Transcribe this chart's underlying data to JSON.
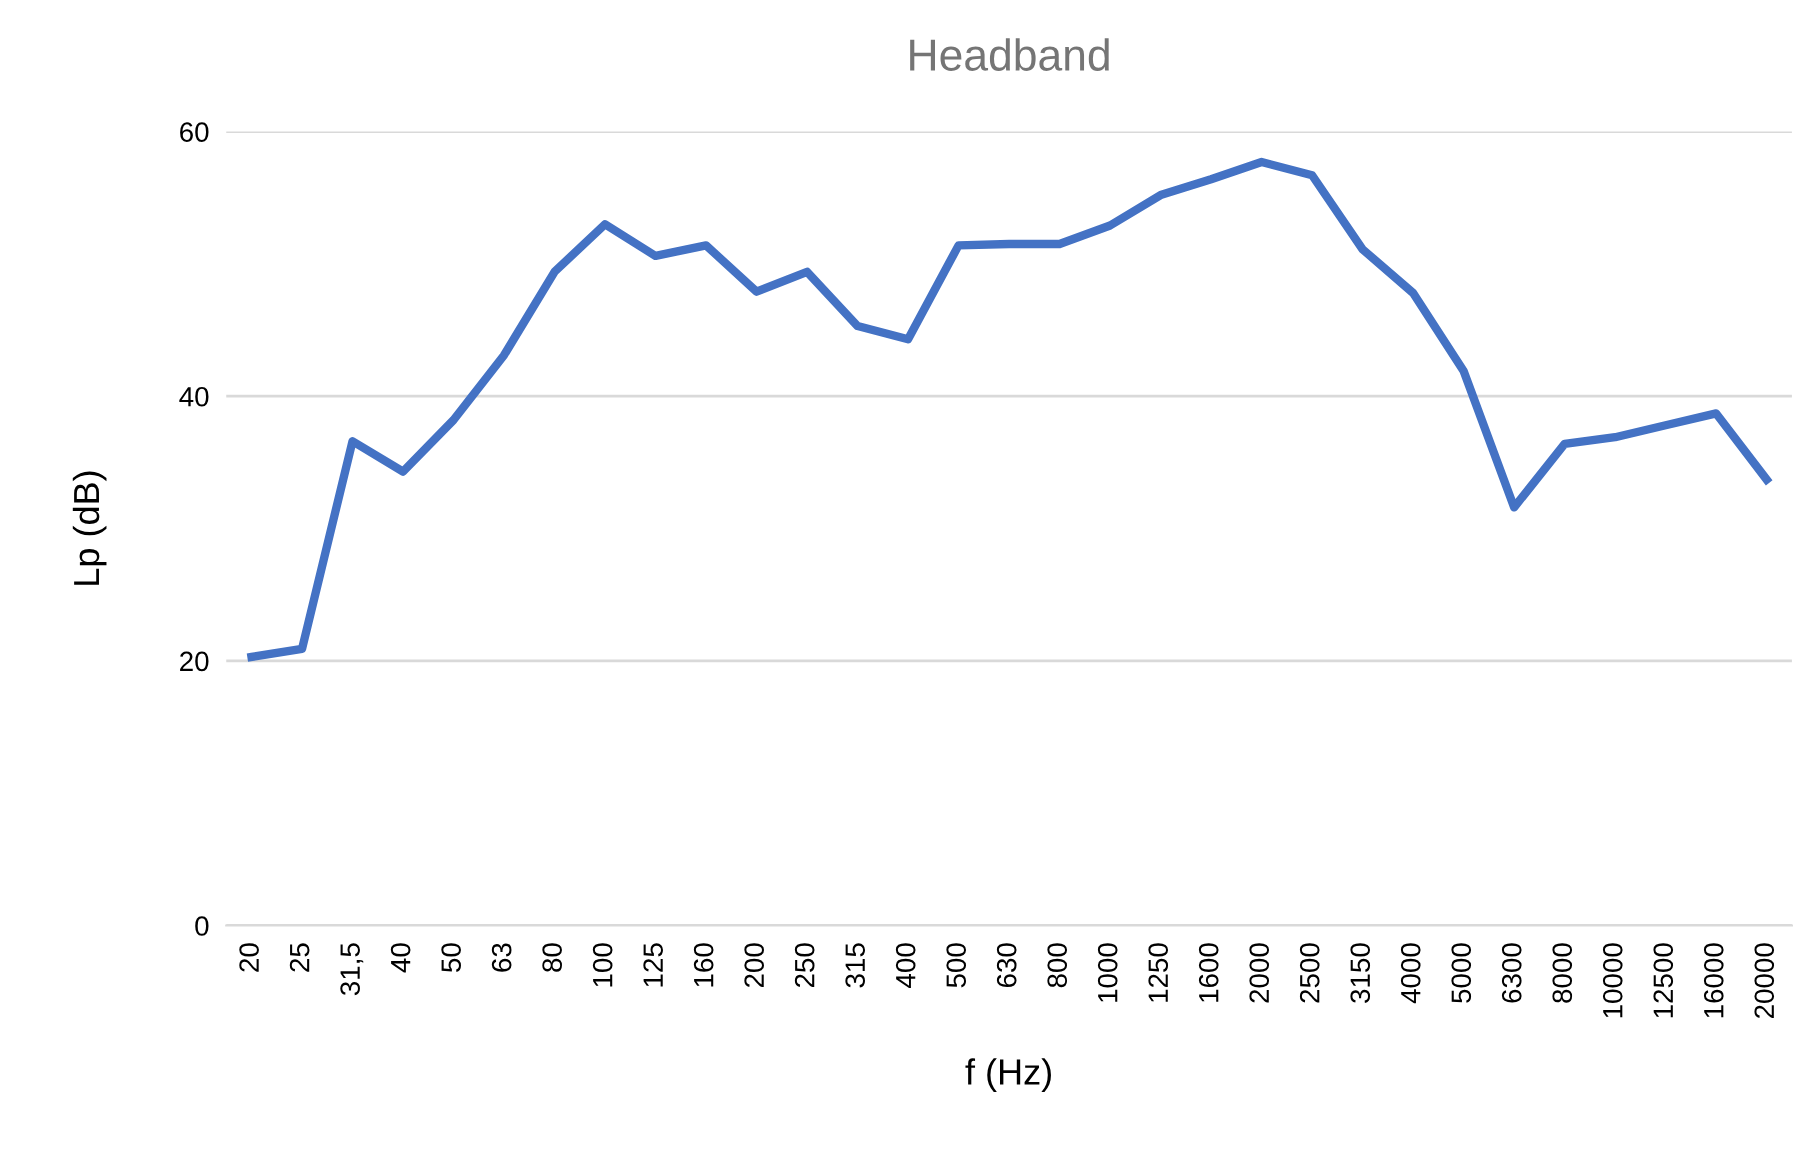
{
  "chart_data": {
    "type": "line",
    "title": "Headband",
    "xlabel": "f (Hz)",
    "ylabel": "Lp (dB)",
    "categories": [
      "20",
      "25",
      "31,5",
      "40",
      "50",
      "63",
      "80",
      "100",
      "125",
      "160",
      "200",
      "250",
      "315",
      "400",
      "500",
      "630",
      "800",
      "1000",
      "1250",
      "1600",
      "2000",
      "2500",
      "3150",
      "4000",
      "5000",
      "6300",
      "8000",
      "10000",
      "12500",
      "16000",
      "20000"
    ],
    "series": [
      {
        "color": "#4472c4",
        "values": [
          20.3,
          20.9,
          36.6,
          34.3,
          38.2,
          43.1,
          49.4,
          53.0,
          50.6,
          51.4,
          47.9,
          49.4,
          45.3,
          44.3,
          51.4,
          51.5,
          51.5,
          52.9,
          55.2,
          56.4,
          57.7,
          56.7,
          51.1,
          47.8,
          41.9,
          31.6,
          36.4,
          36.9,
          37.8,
          38.7,
          33.7
        ]
      }
    ],
    "ylim": [
      0,
      60
    ],
    "yticks": [
      0,
      20,
      40,
      60
    ],
    "grid": "y",
    "marker": "none",
    "line_style": "solid"
  }
}
